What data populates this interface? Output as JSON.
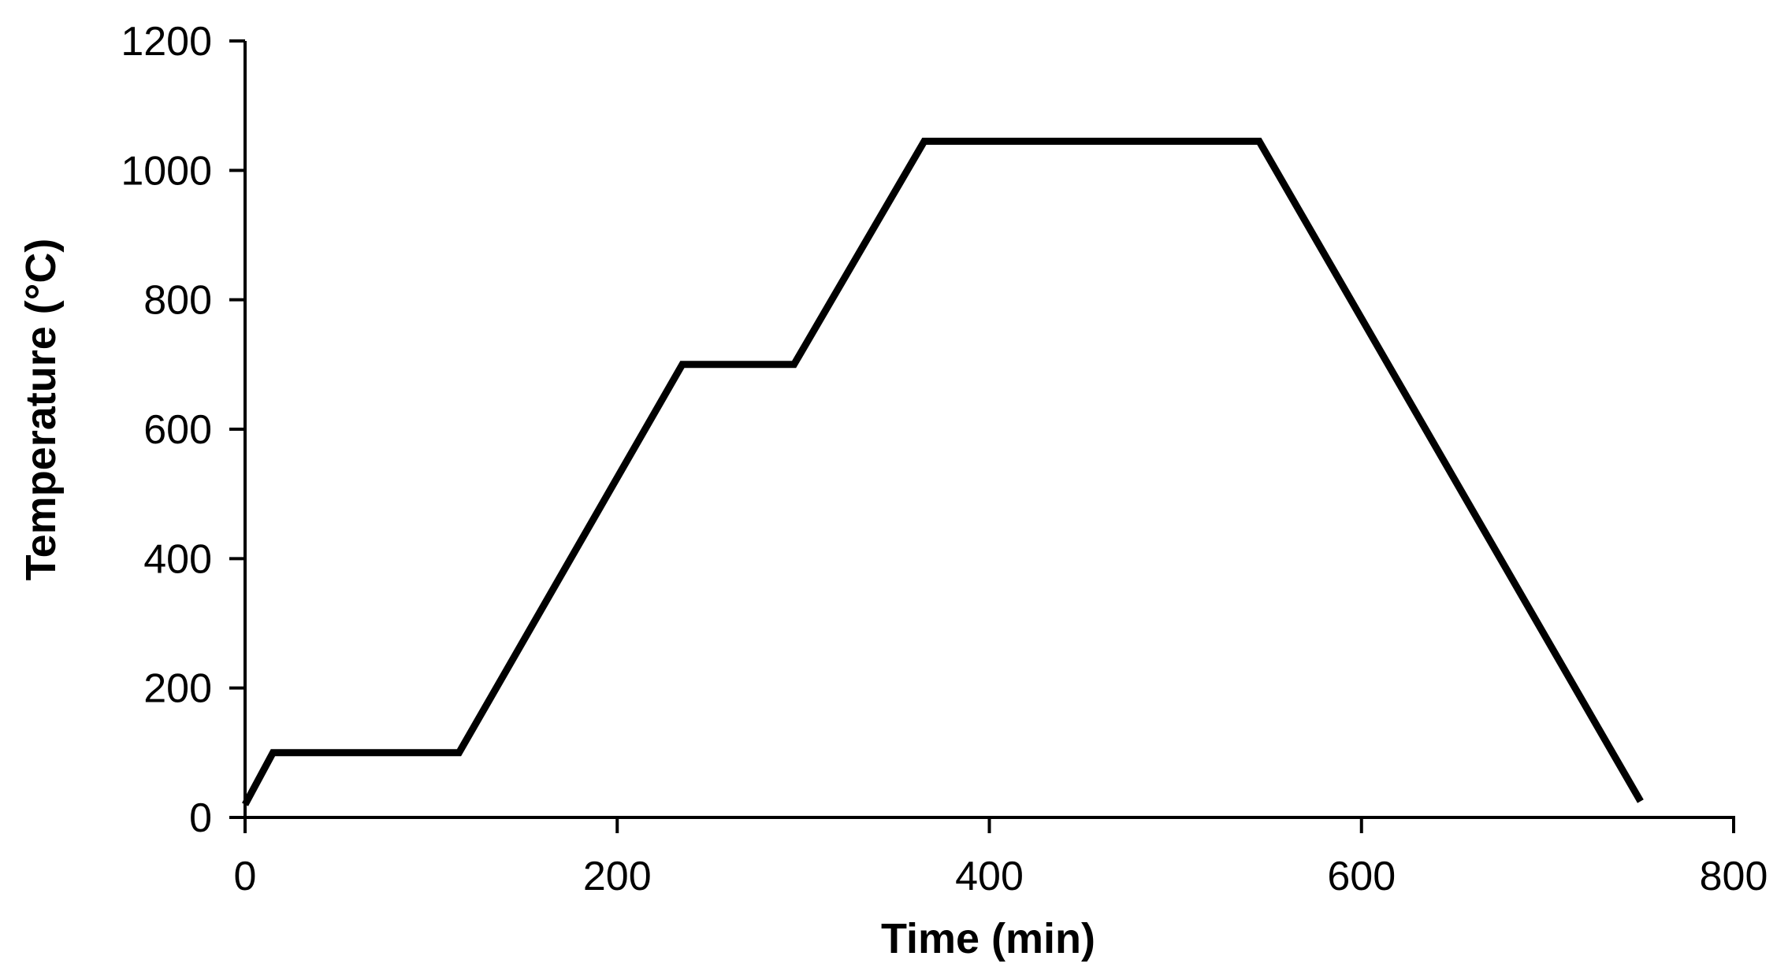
{
  "chart_data": {
    "type": "line",
    "title": "",
    "xlabel": "Time (min)",
    "ylabel": "Temperature (°C)",
    "xlim": [
      0,
      800
    ],
    "ylim": [
      0,
      1200
    ],
    "xticks": [
      0,
      200,
      400,
      600,
      800
    ],
    "yticks": [
      0,
      200,
      400,
      600,
      800,
      1000,
      1200
    ],
    "grid": false,
    "legend": "none",
    "colors": {
      "line": "#000000",
      "axis": "#000000"
    },
    "series": [
      {
        "x": [
          0,
          15,
          115,
          235,
          295,
          365,
          545,
          750
        ],
        "y": [
          20,
          100,
          100,
          700,
          700,
          1045,
          1045,
          25
        ]
      }
    ]
  }
}
